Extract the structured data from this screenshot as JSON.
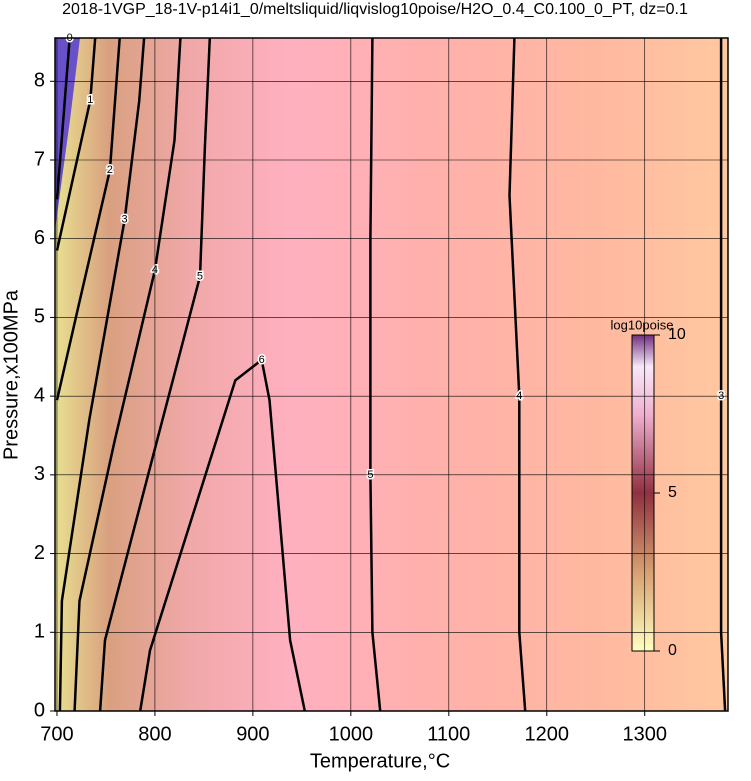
{
  "chart_data": {
    "type": "contour",
    "title": "2018-1VGP_18-1V-p14i1_0/meltsliquid/liqvislog10poise/H2O_0.4_C0.100_0_PT, dz=0.1",
    "x_label": "Temperature,°C",
    "y_label": "Pressure,x100MPa",
    "xlim": [
      698,
      1385
    ],
    "ylim": [
      0,
      8.55
    ],
    "xticks": [
      700,
      800,
      900,
      1000,
      1100,
      1200,
      1300
    ],
    "yticks": [
      0,
      1,
      2,
      3,
      4,
      5,
      6,
      7,
      8
    ],
    "grid": true,
    "colorbar": {
      "label": "log10poise",
      "lim": [
        0,
        10
      ],
      "ticks": [
        0,
        5,
        10
      ]
    },
    "contours": [
      {
        "level": 0,
        "x": [
          700,
          713
        ],
        "y": [
          6.5,
          8.55
        ]
      },
      {
        "level": 1,
        "x": [
          700,
          734,
          739
        ],
        "y": [
          5.85,
          7.76,
          8.55
        ]
      },
      {
        "level": 2,
        "x": [
          700,
          723,
          754,
          764
        ],
        "y": [
          3.95,
          5.2,
          6.87,
          8.55
        ]
      },
      {
        "level": 3,
        "x": [
          703,
          705,
          733,
          769,
          784,
          789
        ],
        "y": [
          0,
          1.4,
          3.7,
          6.24,
          7.75,
          8.55
        ]
      },
      {
        "level": 4,
        "x": [
          718,
          723,
          759,
          800,
          820,
          826
        ],
        "y": [
          0,
          1.4,
          3.44,
          5.6,
          7.25,
          8.55
        ]
      },
      {
        "level": 5,
        "x": [
          744,
          749,
          805,
          846,
          851,
          856
        ],
        "y": [
          0,
          0.9,
          3.57,
          5.52,
          7.17,
          8.55
        ]
      },
      {
        "level": 6,
        "x": [
          785,
          795,
          882,
          909,
          917,
          938,
          953
        ],
        "y": [
          0,
          0.77,
          4.2,
          4.46,
          3.95,
          0.9,
          0
        ]
      },
      {
        "level": 5,
        "x": [
          1030,
          1022,
          1020,
          1020,
          1022
        ],
        "y": [
          0,
          1,
          3,
          6,
          8.55
        ]
      },
      {
        "level": 4,
        "x": [
          1178,
          1172,
          1172,
          1162,
          1167
        ],
        "y": [
          0,
          1,
          4,
          6.55,
          8.55
        ]
      },
      {
        "level": 3,
        "x": [
          1382,
          1378,
          1378,
          1378
        ],
        "y": [
          0,
          1,
          4,
          8.55
        ]
      }
    ]
  }
}
